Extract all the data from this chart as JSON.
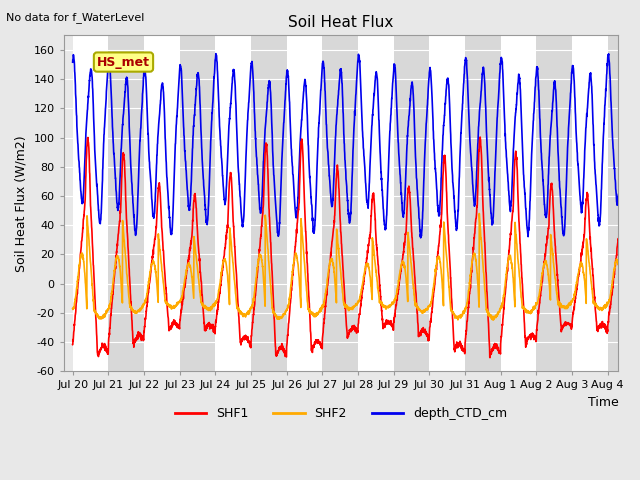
{
  "title": "Soil Heat Flux",
  "top_left_text": "No data for f_WaterLevel",
  "ylabel": "Soil Heat Flux (W/m2)",
  "xlabel": "Time",
  "ylim": [
    -60,
    170
  ],
  "yticks": [
    -60,
    -40,
    -20,
    0,
    20,
    40,
    60,
    80,
    100,
    120,
    140,
    160
  ],
  "x_start_day": 19.75,
  "x_end_day": 35.3,
  "x_tick_days": [
    20,
    21,
    22,
    23,
    24,
    25,
    26,
    27,
    28,
    29,
    30,
    31,
    32,
    33,
    34,
    35
  ],
  "x_tick_labels": [
    "Jul 20",
    "Jul 21",
    "Jul 22",
    "Jul 23",
    "Jul 24",
    "Jul 25",
    "Jul 26",
    "Jul 27",
    "Jul 28",
    "Jul 29",
    "Jul 30",
    "Jul 31",
    "Aug 1",
    "Aug 2",
    "Aug 3",
    "Aug 4"
  ],
  "annotation_label": "HS_met",
  "annotation_color": "#aa0000",
  "annotation_bg": "#ffff88",
  "annotation_border": "#aaaa00",
  "bg_color": "#e8e8e8",
  "stripe_light": "#e8e8e8",
  "stripe_dark": "#d8d8d8",
  "grid_color": "#ffffff",
  "shf1_color": "#ff0000",
  "shf2_color": "#ffaa00",
  "depth_color": "#0000ee",
  "legend_fontsize": 9,
  "title_fontsize": 11,
  "tick_fontsize": 8
}
